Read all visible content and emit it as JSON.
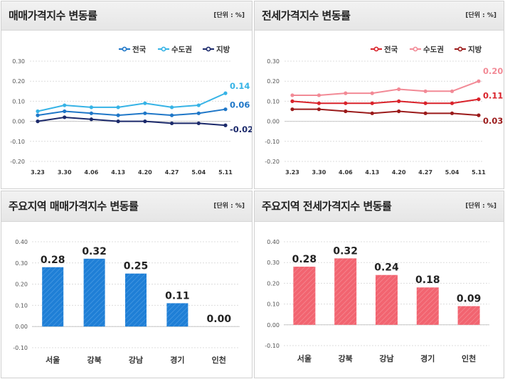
{
  "colors": {
    "blue_nation": "#1f77c8",
    "blue_capital": "#36b3e6",
    "blue_local": "#1c2a6b",
    "red_nation": "#d9232b",
    "red_capital": "#f28a96",
    "red_local": "#9b1b1b",
    "bar_blue": "#1f7fd6",
    "bar_red": "#f26470"
  },
  "panels": [
    {
      "title": "매매가격지수 변동률",
      "unit": "[단위 : %]"
    },
    {
      "title": "전세가격지수 변동률",
      "unit": "[단위 : %]"
    },
    {
      "title": "주요지역 매매가격지수 변동률",
      "unit": "[단위 : %]"
    },
    {
      "title": "주요지역 전세가격지수 변동률",
      "unit": "[단위 : %]"
    }
  ],
  "chart_data": [
    {
      "type": "line",
      "title": "매매가격지수 변동률",
      "x": [
        "3.23",
        "3.30",
        "4.06",
        "4.13",
        "4.20",
        "4.27",
        "5.04",
        "5.11"
      ],
      "ylim": [
        -0.2,
        0.3
      ],
      "yticks": [
        "0.30",
        "0.20",
        "0.10",
        "0.00",
        "-0.10",
        "-0.20"
      ],
      "grid": true,
      "legend": "top-right",
      "series": [
        {
          "name": "전국",
          "values": [
            0.03,
            0.05,
            0.04,
            0.03,
            0.04,
            0.03,
            0.04,
            0.06
          ],
          "end_label": "0.06"
        },
        {
          "name": "수도권",
          "values": [
            0.05,
            0.08,
            0.07,
            0.07,
            0.09,
            0.07,
            0.08,
            0.14
          ],
          "end_label": "0.14"
        },
        {
          "name": "지방",
          "values": [
            0.0,
            0.02,
            0.01,
            0.0,
            0.0,
            -0.01,
            -0.01,
            -0.02
          ],
          "end_label": "-0.02"
        }
      ]
    },
    {
      "type": "line",
      "title": "전세가격지수 변동률",
      "x": [
        "3.23",
        "3.30",
        "4.06",
        "4.13",
        "4.20",
        "4.27",
        "5.04",
        "5.11"
      ],
      "ylim": [
        -0.2,
        0.3
      ],
      "yticks": [
        "0.30",
        "0.20",
        "0.10",
        "0.00",
        "-0.10",
        "-0.20"
      ],
      "grid": true,
      "legend": "top-right",
      "series": [
        {
          "name": "전국",
          "values": [
            0.1,
            0.09,
            0.09,
            0.09,
            0.1,
            0.09,
            0.09,
            0.11
          ],
          "end_label": "0.11"
        },
        {
          "name": "수도권",
          "values": [
            0.13,
            0.13,
            0.14,
            0.14,
            0.16,
            0.15,
            0.15,
            0.2
          ],
          "end_label": "0.20"
        },
        {
          "name": "지방",
          "values": [
            0.06,
            0.06,
            0.05,
            0.04,
            0.05,
            0.04,
            0.04,
            0.03
          ],
          "end_label": "0.03"
        }
      ]
    },
    {
      "type": "bar",
      "title": "주요지역 매매가격지수 변동률",
      "categories": [
        "서울",
        "강북",
        "강남",
        "경기",
        "인천"
      ],
      "values": [
        0.28,
        0.32,
        0.25,
        0.11,
        0.0
      ],
      "labels": [
        "0.28",
        "0.32",
        "0.25",
        "0.11",
        "0.00"
      ],
      "ylim": [
        -0.1,
        0.4
      ],
      "yticks": [
        "0.40",
        "0.30",
        "0.20",
        "0.10",
        "0.00",
        "-0.10"
      ],
      "grid": true
    },
    {
      "type": "bar",
      "title": "주요지역 전세가격지수 변동률",
      "categories": [
        "서울",
        "강북",
        "강남",
        "경기",
        "인천"
      ],
      "values": [
        0.28,
        0.32,
        0.24,
        0.18,
        0.09
      ],
      "labels": [
        "0.28",
        "0.32",
        "0.24",
        "0.18",
        "0.09"
      ],
      "ylim": [
        -0.1,
        0.4
      ],
      "yticks": [
        "0.40",
        "0.30",
        "0.20",
        "0.10",
        "0.00",
        "-0.10"
      ],
      "grid": true
    }
  ]
}
